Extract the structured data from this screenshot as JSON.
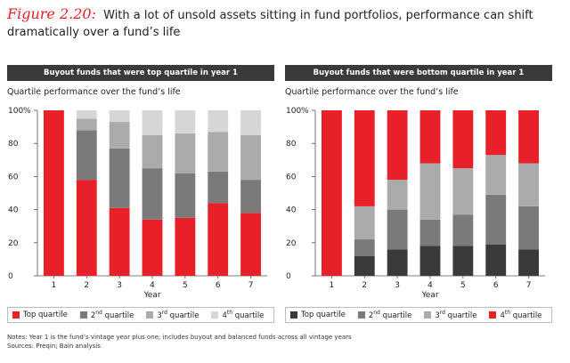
{
  "figure": {
    "label": "Figure 2.20:",
    "title": "With a lot of unsold assets sitting in fund portfolios, performance can shift dramatically over a fund’s life"
  },
  "colors": {
    "top": "#e8202a",
    "second": "#7a7a7a",
    "third": "#ababab",
    "fourth": "#d6d6d6",
    "bottom_group": "#3a3a3a"
  },
  "chart_data": [
    {
      "type": "bar",
      "stacked": true,
      "title": "Buyout funds that were top quartile in year 1",
      "subtitle": "Quartile performance over the fund’s life",
      "xlabel": "Year",
      "ylim": [
        0,
        100
      ],
      "ytick_labels": [
        "0",
        "20",
        "40",
        "60",
        "80",
        "100%"
      ],
      "categories": [
        "1",
        "2",
        "3",
        "4",
        "5",
        "6",
        "7"
      ],
      "series": [
        {
          "name": "Top quartile",
          "values": [
            100,
            58,
            41,
            34,
            35,
            44,
            38
          ]
        },
        {
          "name": "2nd quartile",
          "values": [
            0,
            30,
            36,
            31,
            27,
            19,
            20
          ]
        },
        {
          "name": "3rd quartile",
          "values": [
            0,
            7,
            16,
            20,
            24,
            24,
            27
          ]
        },
        {
          "name": "4th quartile",
          "values": [
            0,
            5,
            7,
            15,
            14,
            13,
            15
          ]
        }
      ],
      "legend": [
        {
          "label": "Top quartile",
          "sup": "",
          "color": "#e8202a"
        },
        {
          "label": "2",
          "sup": "nd",
          "rest": " quartile",
          "color": "#7a7a7a"
        },
        {
          "label": "3",
          "sup": "rd",
          "rest": " quartile",
          "color": "#ababab"
        },
        {
          "label": "4",
          "sup": "th",
          "rest": " quartile",
          "color": "#d6d6d6"
        }
      ],
      "legend_position": "bottom"
    },
    {
      "type": "bar",
      "stacked": true,
      "title": "Buyout funds that were bottom quartile in year 1",
      "subtitle": "Quartile performance over the fund’s life",
      "xlabel": "Year",
      "ylim": [
        0,
        100
      ],
      "ytick_labels": [
        "0",
        "20",
        "40",
        "60",
        "80",
        "100%"
      ],
      "categories": [
        "1",
        "2",
        "3",
        "4",
        "5",
        "6",
        "7"
      ],
      "series": [
        {
          "name": "Top quartile",
          "values": [
            0,
            12,
            16,
            18,
            18,
            19,
            16
          ]
        },
        {
          "name": "2nd quartile",
          "values": [
            0,
            10,
            24,
            16,
            19,
            30,
            26
          ]
        },
        {
          "name": "3rd quartile",
          "values": [
            0,
            20,
            18,
            34,
            28,
            24,
            26
          ]
        },
        {
          "name": "4th quartile",
          "values": [
            100,
            58,
            42,
            32,
            35,
            27,
            32
          ]
        }
      ],
      "legend": [
        {
          "label": "Top quartile",
          "sup": "",
          "color": "#3a3a3a"
        },
        {
          "label": "2",
          "sup": "nd",
          "rest": " quartile",
          "color": "#7a7a7a"
        },
        {
          "label": "3",
          "sup": "rd",
          "rest": " quartile",
          "color": "#ababab"
        },
        {
          "label": "4",
          "sup": "th",
          "rest": " quartile",
          "color": "#e8202a"
        }
      ],
      "legend_position": "bottom"
    }
  ],
  "notes": {
    "line1": "Notes: Year 1 is the fund’s vintage year plus one; includes buyout and balanced funds across all vintage years",
    "line2": "Sources: Preqin; Bain analysis"
  }
}
